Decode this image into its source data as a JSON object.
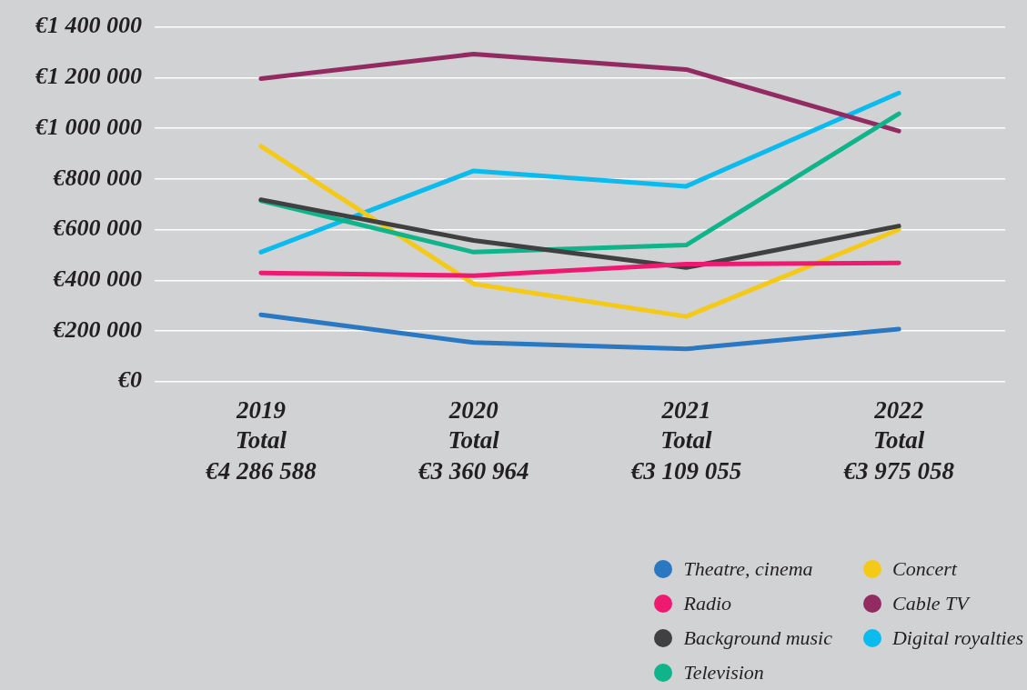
{
  "chart_data": {
    "type": "line",
    "categories": [
      "2019\nTotal\n€4 286 588",
      "2020\nTotal\n€3 360 964",
      "2021\nTotal\n€3 109 055",
      "2022\nTotal\n€3 975 058"
    ],
    "series": [
      {
        "name": "Theatre, cinema",
        "color": "#2a78c2",
        "values": [
          264000,
          154000,
          129000,
          207000
        ]
      },
      {
        "name": "Radio",
        "color": "#ee1a72",
        "values": [
          429000,
          418000,
          464000,
          468000
        ]
      },
      {
        "name": "Background music",
        "color": "#404040",
        "values": [
          718000,
          557000,
          450000,
          614000
        ]
      },
      {
        "name": "Television",
        "color": "#10b48a",
        "values": [
          714000,
          511000,
          539000,
          1057000
        ]
      },
      {
        "name": "Concert",
        "color": "#f5c917",
        "values": [
          929000,
          386000,
          257000,
          600000
        ]
      },
      {
        "name": "Cable TV",
        "color": "#932b63",
        "values": [
          1196000,
          1293000,
          1232000,
          989000
        ]
      },
      {
        "name": "Digital royalties",
        "color": "#0bbbee",
        "values": [
          511000,
          832000,
          771000,
          1139000
        ]
      }
    ],
    "ylim": [
      0,
      1400000
    ],
    "yticks": [
      {
        "value": 0,
        "label": "€0"
      },
      {
        "value": 200000,
        "label": "€200 000"
      },
      {
        "value": 400000,
        "label": "€400 000"
      },
      {
        "value": 600000,
        "label": "€600 000"
      },
      {
        "value": 800000,
        "label": "€800 000"
      },
      {
        "value": 1000000,
        "label": "€1 000 000"
      },
      {
        "value": 1200000,
        "label": "€1 200 000"
      },
      {
        "value": 1400000,
        "label": "€1 400 000"
      }
    ],
    "grid": "y",
    "legend": "bottom right",
    "marker": "none",
    "line_style": "solid"
  }
}
